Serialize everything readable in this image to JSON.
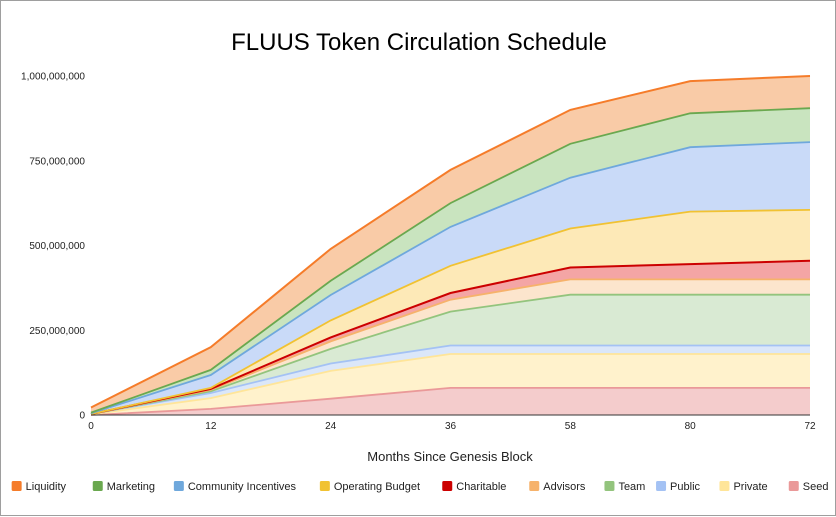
{
  "chart_data": {
    "type": "area",
    "stacked": true,
    "title": "FLUUS Token Circulation Schedule",
    "xlabel": "Months Since Genesis Block",
    "ylabel": "",
    "x": [
      "0",
      "12",
      "24",
      "36",
      "58",
      "80",
      "72"
    ],
    "y_ticks": [
      "0",
      "250,000,000",
      "500,000,000",
      "750,000,000",
      "1,000,000,000"
    ],
    "ylim": [
      0,
      1000000000
    ],
    "legend_position": "bottom",
    "grid": false,
    "series": [
      {
        "name": "Seed",
        "color": "#ea9999",
        "fill": "#f4cccc",
        "values": [
          0,
          18000000,
          48000000,
          80000000,
          80000000,
          80000000,
          80000000
        ]
      },
      {
        "name": "Private",
        "color": "#ffe599",
        "fill": "#fff2cc",
        "values": [
          2000000,
          32000000,
          82000000,
          100000000,
          100000000,
          100000000,
          100000000
        ]
      },
      {
        "name": "Public",
        "color": "#a4c2f4",
        "fill": "#dbe7f9",
        "values": [
          1000000,
          15000000,
          22000000,
          25000000,
          25000000,
          25000000,
          25000000
        ]
      },
      {
        "name": "Team",
        "color": "#93c47d",
        "fill": "#d9ead3",
        "values": [
          0,
          5000000,
          43000000,
          100000000,
          150000000,
          150000000,
          150000000
        ]
      },
      {
        "name": "Advisors",
        "color": "#f6b26b",
        "fill": "#fce5cd",
        "values": [
          0,
          4000000,
          22000000,
          35000000,
          45000000,
          45000000,
          45000000
        ]
      },
      {
        "name": "Charitable",
        "color": "#cc0000",
        "fill": "#f4a5a5",
        "values": [
          0,
          3000000,
          12000000,
          20000000,
          35000000,
          45000000,
          55000000
        ]
      },
      {
        "name": "Operating Budget",
        "color": "#f1c232",
        "fill": "#fde9b7",
        "values": [
          0,
          3000000,
          50000000,
          80000000,
          115000000,
          155000000,
          150000000
        ]
      },
      {
        "name": "Community Incentives",
        "color": "#6fa8dc",
        "fill": "#c9daf8",
        "values": [
          2000000,
          38000000,
          75000000,
          115000000,
          150000000,
          190000000,
          200000000
        ]
      },
      {
        "name": "Marketing",
        "color": "#6aa84f",
        "fill": "#c9e4bf",
        "values": [
          2000000,
          15000000,
          42000000,
          70000000,
          100000000,
          100000000,
          100000000
        ]
      },
      {
        "name": "Liquidity",
        "color": "#f57c2a",
        "fill": "#f9cba7",
        "values": [
          15000000,
          67000000,
          94000000,
          98000000,
          100000000,
          95000000,
          95000000
        ]
      }
    ],
    "legend_order": [
      "Liquidity",
      "Marketing",
      "Community Incentives",
      "Operating Budget",
      "Charitable",
      "Advisors",
      "Team",
      "Public",
      "Private",
      "Seed"
    ]
  }
}
